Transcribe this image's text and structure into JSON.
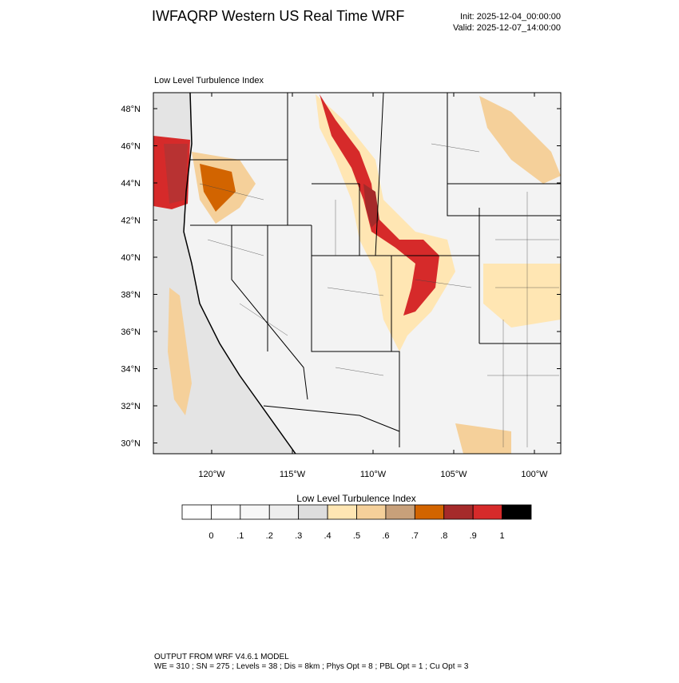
{
  "header": {
    "title": "IWFAQRP Western US Real Time WRF",
    "init": "Init: 2025-12-04_00:00:00",
    "valid": "Valid: 2025-12-07_14:00:00"
  },
  "map": {
    "label": "Low Level Turbulence Index",
    "lat_labels": [
      "48°N",
      "46°N",
      "44°N",
      "42°N",
      "40°N",
      "38°N",
      "36°N",
      "34°N",
      "32°N",
      "30°N"
    ],
    "lon_labels": [
      "120°W",
      "115°W",
      "110°W",
      "105°W",
      "100°W"
    ]
  },
  "colorbar": {
    "title": "Low Level Turbulence Index",
    "colors": [
      "#ffffff",
      "#f7f7f7",
      "#eeeeee",
      "#dddddd",
      "#ffe6b3",
      "#f5d09a",
      "#c8a07a",
      "#d26400",
      "#a52a2a",
      "#d62a2a",
      "#000000"
    ],
    "labels": [
      "0",
      ".1",
      ".2",
      ".3",
      ".4",
      ".5",
      ".6",
      ".7",
      ".8",
      ".9",
      "1"
    ]
  },
  "footer": {
    "line1": "OUTPUT FROM WRF V4.6.1 MODEL",
    "line2": "WE = 310 ; SN = 275 ; Levels = 38 ; Dis = 8km ; Phys Opt = 8 ; PBL Opt = 1 ; Cu Opt = 3"
  }
}
